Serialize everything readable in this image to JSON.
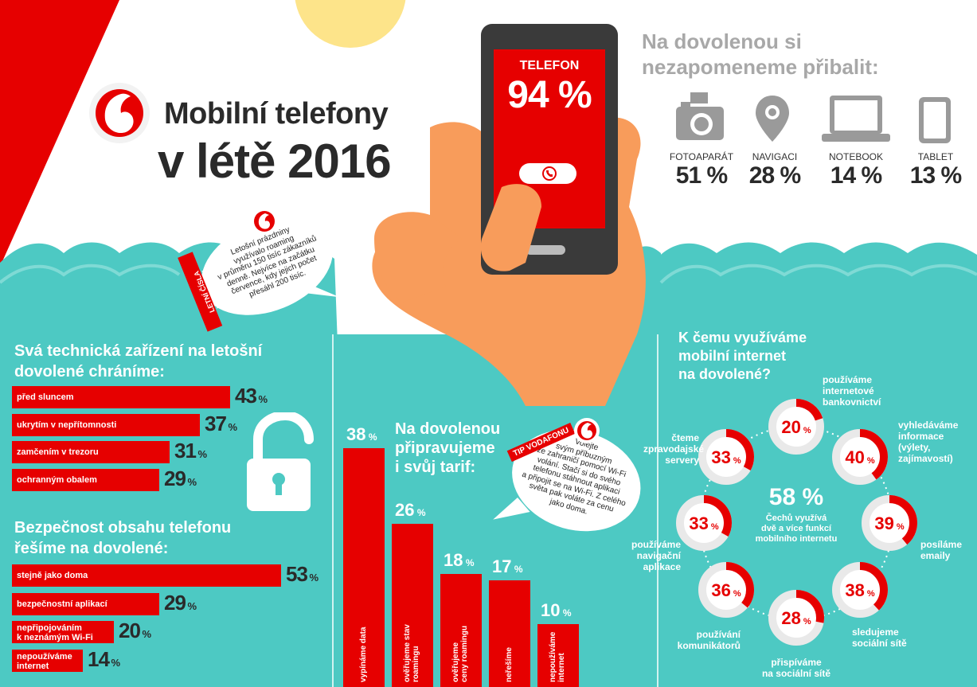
{
  "title": {
    "line1": "Mobilní telefony",
    "line2": "v létě 2016"
  },
  "phone": {
    "label": "TELEFON",
    "value": "94 %"
  },
  "pack": {
    "heading_line1": "Na dovolenou si",
    "heading_line2": "nezapomeneme přibalit:",
    "items": [
      {
        "label": "FOTOAPARÁT",
        "value": "51 %",
        "icon": "camera-icon"
      },
      {
        "label": "NAVIGACI",
        "value": "28 %",
        "icon": "map-pin-icon"
      },
      {
        "label": "NOTEBOOK",
        "value": "14 %",
        "icon": "laptop-icon"
      },
      {
        "label": "TABLET",
        "value": "13 %",
        "icon": "tablet-icon"
      }
    ]
  },
  "letni": {
    "tag": "LETNÍ ČÍSLA VODAFONU",
    "lines": [
      "Letošní prázdniny",
      "využívalo roaming",
      "v průměru 150 tisíc zákazníků",
      "denně. Nejvíce na začátku",
      "července, kdy jejich počet",
      "přesáhl 200 tisíc."
    ]
  },
  "tip": {
    "tag": "TIP VODAFONU",
    "lines": [
      "Volejte",
      "svým příbuzným",
      "ze zahraničí pomocí Wi-Fi",
      "volání. Stačí si do svého",
      "telefonu stáhnout aplikaci",
      "a připojit se na Wi-Fi. Z celého",
      "světa pak voláte za cenu",
      "jako doma."
    ]
  },
  "colors": {
    "red": "#e60000",
    "teal": "#4dc9c3",
    "dark": "#2a2a2a",
    "grey": "#aaaaaa",
    "yellow": "#fde48a"
  },
  "chart_data": [
    {
      "type": "bar",
      "orientation": "horizontal",
      "title": "Svá technická zařízení na letošní dovolené chráníme:",
      "title_lines": [
        "Svá technická zařízení na letošní",
        "dovolené chráníme:"
      ],
      "categories": [
        "před sluncem",
        "ukrytím v nepřítomnosti",
        "zamčením v trezoru",
        "ochranným obalem"
      ],
      "values": [
        43,
        37,
        31,
        29
      ],
      "labels": [
        "43",
        "37",
        "31",
        "29"
      ],
      "unit": "%"
    },
    {
      "type": "bar",
      "orientation": "horizontal",
      "title": "Bezpečnost obsahu telefonu řešíme na dovolené:",
      "title_lines": [
        "Bezpečnost obsahu telefonu",
        "řešíme na dovolené:"
      ],
      "categories": [
        "stejně jako doma",
        "bezpečnostní aplikací",
        "nepřipojováním k neznámým Wi-Fi",
        "nepoužíváme internet"
      ],
      "category_lines": [
        [
          "stejně jako doma"
        ],
        [
          "bezpečnostní aplikací"
        ],
        [
          "nepřipojováním",
          "k neznámým Wi-Fi"
        ],
        [
          "nepoužíváme",
          "internet"
        ]
      ],
      "values": [
        53,
        29,
        20,
        14
      ],
      "labels": [
        "53",
        "29",
        "20",
        "14"
      ],
      "unit": "%"
    },
    {
      "type": "bar",
      "orientation": "vertical",
      "title": "Na dovolenou připravujeme i svůj tarif:",
      "title_lines": [
        "Na dovolenou",
        "připravujeme",
        "i svůj tarif:"
      ],
      "categories": [
        "vypínáme data",
        "ověřujeme stav roamingu",
        "ověřujeme ceny roamingu",
        "neřešíme",
        "nepoužíváme internet"
      ],
      "category_lines": [
        [
          "vypínáme data"
        ],
        [
          "ověřujeme stav",
          "roamingu"
        ],
        [
          "ověřujeme",
          "ceny roamingu"
        ],
        [
          "neřešíme"
        ],
        [
          "nepoužíváme",
          "internet"
        ]
      ],
      "values": [
        38,
        26,
        18,
        17,
        10
      ],
      "labels": [
        "38",
        "26",
        "18",
        "17",
        "10"
      ],
      "unit": "%"
    },
    {
      "type": "pie",
      "title": "K čemu využíváme mobilní internet na dovolené?",
      "title_lines": [
        "K čemu využíváme",
        "mobilní internet",
        "na dovolené?"
      ],
      "center": {
        "value": "58 %",
        "lines": [
          "Čechů využívá",
          "dvě a více funkcí",
          "mobilního internetu"
        ]
      },
      "categories": [
        "používáme internetové bankovnictví",
        "vyhledáváme informace (výlety, zajímavosti)",
        "posíláme emaily",
        "sledujeme sociální sítě",
        "přispíváme na sociální sítě",
        "používání komunikátorů",
        "používáme navigační aplikace",
        "čteme zpravodajské servery"
      ],
      "category_lines": [
        [
          "používáme internetové",
          "bankovnictví"
        ],
        [
          "vyhledáváme",
          "informace",
          "(výlety,",
          "zajímavostí)"
        ],
        [
          "posíláme",
          "emaily"
        ],
        [
          "sledujeme",
          "sociální sítě"
        ],
        [
          "přispíváme",
          "na sociální sítě"
        ],
        [
          "používání",
          "komunikátorů"
        ],
        [
          "používáme",
          "navigační",
          "aplikace"
        ],
        [
          "čteme",
          "zpravodajské",
          "servery"
        ]
      ],
      "values": [
        20,
        40,
        39,
        38,
        28,
        36,
        33,
        33
      ],
      "labels": [
        "20",
        "40",
        "39",
        "38",
        "28",
        "36",
        "33",
        "33"
      ],
      "unit": "%"
    }
  ]
}
